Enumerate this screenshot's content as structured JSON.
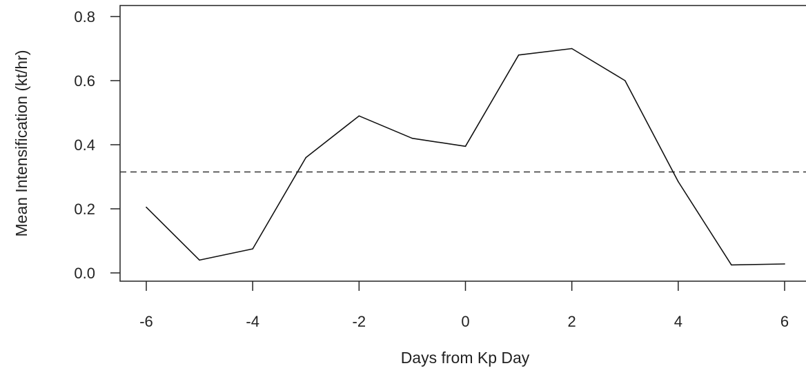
{
  "chart_data": {
    "type": "line",
    "title": "",
    "xlabel": "Days from Kp Day",
    "ylabel": "Mean Intensification (kt/hr)",
    "xlim": [
      -6.5,
      6.5
    ],
    "ylim": [
      -0.03,
      0.83
    ],
    "x_ticks": [
      -6,
      -4,
      -2,
      0,
      2,
      4,
      6
    ],
    "x_tick_labels": [
      "-6",
      "-4",
      "-2",
      "0",
      "2",
      "4",
      "6"
    ],
    "y_ticks": [
      0.0,
      0.2,
      0.4,
      0.6,
      0.8
    ],
    "y_tick_labels": [
      "0.0",
      "0.2",
      "0.4",
      "0.6",
      "0.8"
    ],
    "grid": false,
    "legend": "none",
    "series": [
      {
        "x": [
          -6,
          -5,
          -4,
          -3,
          -2,
          -1,
          0,
          1,
          2,
          3,
          4,
          5,
          6
        ],
        "y": [
          0.205,
          0.04,
          0.075,
          0.36,
          0.49,
          0.42,
          0.395,
          0.68,
          0.7,
          0.6,
          0.285,
          0.025,
          0.028
        ],
        "style": "solid",
        "color": "#111111"
      }
    ],
    "reference_line": {
      "y": 0.315,
      "style": "dashed",
      "color": "#333333"
    }
  }
}
